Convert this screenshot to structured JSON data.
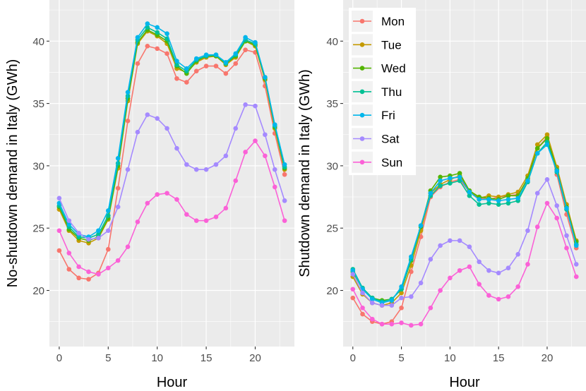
{
  "days": [
    "Mon",
    "Tue",
    "Wed",
    "Thu",
    "Fri",
    "Sat",
    "Sun"
  ],
  "colors": [
    "#F8766D",
    "#C49A00",
    "#53B400",
    "#00C094",
    "#00B6EB",
    "#A58AFF",
    "#FB61D7"
  ],
  "chart_data": [
    {
      "type": "line",
      "ylabel": "No-shutdown demand in Italy (GWh)",
      "xlabel": "Hour",
      "xlim": [
        -1,
        24
      ],
      "ylim": [
        15.5,
        43.3
      ],
      "xticks": [
        0,
        5,
        10,
        15,
        20
      ],
      "yticks": [
        20,
        25,
        30,
        35,
        40
      ],
      "x": [
        0,
        1,
        2,
        3,
        4,
        5,
        6,
        7,
        8,
        9,
        10,
        11,
        12,
        13,
        14,
        15,
        16,
        17,
        18,
        19,
        20,
        21,
        22,
        23
      ],
      "series": [
        {
          "name": "Mon",
          "values": [
            23.2,
            21.7,
            21.0,
            20.9,
            21.4,
            23.3,
            28.2,
            33.6,
            38.2,
            39.6,
            39.4,
            39.0,
            37.0,
            36.7,
            37.6,
            38.0,
            38.0,
            37.4,
            38.2,
            39.3,
            39.1,
            36.4,
            32.6,
            29.3
          ]
        },
        {
          "name": "Tue",
          "values": [
            26.5,
            24.8,
            24.0,
            23.8,
            24.2,
            25.7,
            29.8,
            35.2,
            39.8,
            40.8,
            40.4,
            39.8,
            37.8,
            37.5,
            38.3,
            38.7,
            38.8,
            38.1,
            38.7,
            40.0,
            39.6,
            36.9,
            33.0,
            29.7
          ]
        },
        {
          "name": "Wed",
          "values": [
            26.7,
            24.9,
            24.2,
            24.0,
            24.3,
            25.8,
            30.0,
            35.4,
            39.9,
            40.9,
            40.5,
            40.0,
            38.0,
            37.4,
            38.4,
            38.8,
            38.8,
            38.2,
            38.8,
            40.0,
            39.7,
            37.0,
            33.1,
            29.8
          ]
        },
        {
          "name": "Thu",
          "values": [
            26.8,
            25.1,
            24.3,
            24.2,
            24.5,
            26.0,
            30.2,
            35.6,
            40.1,
            41.1,
            40.7,
            40.2,
            38.1,
            37.6,
            38.5,
            38.8,
            38.9,
            38.2,
            38.9,
            40.1,
            39.8,
            37.1,
            33.2,
            29.9
          ]
        },
        {
          "name": "Fri",
          "values": [
            27.0,
            25.3,
            24.5,
            24.3,
            24.8,
            26.4,
            30.6,
            35.9,
            40.3,
            41.4,
            41.1,
            40.6,
            38.4,
            37.8,
            38.6,
            38.9,
            38.9,
            38.3,
            39.0,
            40.3,
            39.9,
            37.1,
            33.3,
            30.1
          ]
        },
        {
          "name": "Sat",
          "values": [
            27.4,
            25.6,
            24.6,
            24.1,
            24.2,
            24.8,
            26.7,
            29.7,
            32.7,
            34.1,
            33.8,
            33.0,
            31.4,
            30.1,
            29.7,
            29.7,
            30.1,
            30.8,
            33.0,
            34.9,
            34.8,
            32.5,
            29.7,
            27.2
          ]
        },
        {
          "name": "Sun",
          "values": [
            24.8,
            23.0,
            21.9,
            21.5,
            21.3,
            21.8,
            22.4,
            23.5,
            25.5,
            27.0,
            27.7,
            27.8,
            27.3,
            26.1,
            25.6,
            25.6,
            25.9,
            26.6,
            28.8,
            31.1,
            32.0,
            30.8,
            28.3,
            25.6
          ]
        }
      ]
    },
    {
      "type": "line",
      "ylabel": "Shutdown demand in Italy (GWh)",
      "xlabel": "Hour",
      "xlim": [
        -1,
        24
      ],
      "ylim": [
        15.5,
        43.3
      ],
      "xticks": [
        0,
        5,
        10,
        15,
        20
      ],
      "yticks": [
        20,
        25,
        30,
        35,
        40
      ],
      "legend": "top-left",
      "x": [
        0,
        1,
        2,
        3,
        4,
        5,
        6,
        7,
        8,
        9,
        10,
        11,
        12,
        13,
        14,
        15,
        16,
        17,
        18,
        19,
        20,
        21,
        22,
        23
      ],
      "series": [
        {
          "name": "Mon",
          "values": [
            19.4,
            18.1,
            17.5,
            17.3,
            17.5,
            18.6,
            21.5,
            24.3,
            27.5,
            28.3,
            28.7,
            28.9,
            27.9,
            27.4,
            27.3,
            27.5,
            27.6,
            27.7,
            28.9,
            31.4,
            32.3,
            29.3,
            26.1,
            23.4
          ]
        },
        {
          "name": "Tue",
          "values": [
            21.1,
            19.7,
            19.0,
            18.8,
            19.0,
            19.8,
            22.0,
            24.8,
            27.8,
            28.5,
            28.9,
            29.2,
            28.0,
            27.4,
            27.6,
            27.5,
            27.7,
            27.9,
            29.2,
            31.7,
            32.5,
            29.9,
            26.9,
            24.0
          ]
        },
        {
          "name": "Wed",
          "values": [
            21.5,
            20.1,
            19.4,
            19.2,
            19.3,
            20.1,
            22.4,
            25.1,
            28.0,
            29.1,
            29.2,
            29.4,
            28.0,
            27.5,
            27.4,
            27.3,
            27.6,
            27.6,
            29.0,
            31.4,
            32.2,
            29.7,
            26.7,
            23.9
          ]
        },
        {
          "name": "Thu",
          "values": [
            21.7,
            20.2,
            19.4,
            19.1,
            19.3,
            20.1,
            22.5,
            25.2,
            27.6,
            28.4,
            28.6,
            28.8,
            27.6,
            26.9,
            27.0,
            26.9,
            27.0,
            27.2,
            28.7,
            31.0,
            31.9,
            29.5,
            26.5,
            23.7
          ]
        },
        {
          "name": "Fri",
          "values": [
            21.6,
            20.1,
            19.3,
            19.0,
            19.2,
            20.3,
            22.7,
            25.2,
            27.8,
            28.8,
            29.0,
            29.1,
            27.9,
            27.3,
            27.3,
            27.2,
            27.3,
            27.4,
            28.8,
            31.0,
            31.7,
            29.6,
            26.6,
            23.6
          ]
        },
        {
          "name": "Sat",
          "values": [
            21.3,
            19.8,
            19.0,
            18.8,
            18.8,
            19.4,
            19.5,
            20.6,
            22.5,
            23.6,
            24.0,
            24.0,
            23.5,
            22.3,
            21.6,
            21.4,
            21.8,
            22.9,
            24.8,
            27.8,
            28.9,
            26.8,
            24.4,
            22.1
          ]
        },
        {
          "name": "Sun",
          "values": [
            20.1,
            18.6,
            17.7,
            17.3,
            17.3,
            17.4,
            17.2,
            17.3,
            18.6,
            20.0,
            21.0,
            21.6,
            21.9,
            20.5,
            19.6,
            19.3,
            19.5,
            20.3,
            22.1,
            25.1,
            27.0,
            25.8,
            23.4,
            21.1
          ]
        }
      ]
    }
  ]
}
